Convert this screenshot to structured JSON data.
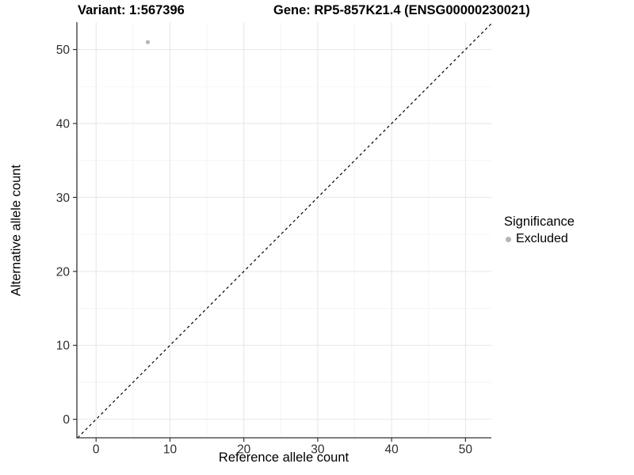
{
  "header": {
    "variant_title": "Variant: 1:567396",
    "gene_title": "Gene: RP5-857K21.4 (ENSG00000230021)"
  },
  "chart_data": {
    "type": "scatter",
    "title": "Variant: 1:567396   Gene: RP5-857K21.4 (ENSG00000230021)",
    "xlabel": "Reference allele count",
    "ylabel": "Alternative allele count",
    "xlim": [
      -2.6,
      53.5
    ],
    "ylim": [
      -2.5,
      53.7
    ],
    "x_ticks": [
      0,
      10,
      20,
      30,
      40,
      50
    ],
    "y_ticks": [
      0,
      10,
      20,
      30,
      40,
      50
    ],
    "x_minor_ticks": [
      5,
      15,
      25,
      35,
      45
    ],
    "y_minor_ticks": [
      5,
      15,
      25,
      35,
      45
    ],
    "grid": true,
    "points": [
      {
        "x": 7,
        "y": 51,
        "series": "Excluded"
      }
    ],
    "reference_line": {
      "type": "identity",
      "slope": 1,
      "intercept": 0,
      "style": "dashed"
    },
    "legend": {
      "title": "Significance",
      "position": "right",
      "entries": [
        {
          "label": "Excluded",
          "marker": "circle",
          "color": "#b5b5b5"
        }
      ]
    },
    "colors": {
      "point": "#b8b8b8",
      "reference_line": "#000000",
      "grid_major": "#e6e6e6",
      "grid_minor": "#f3f3f3",
      "axis": "#333333",
      "tick_label": "#2e2e2e",
      "title": "#000000"
    }
  }
}
